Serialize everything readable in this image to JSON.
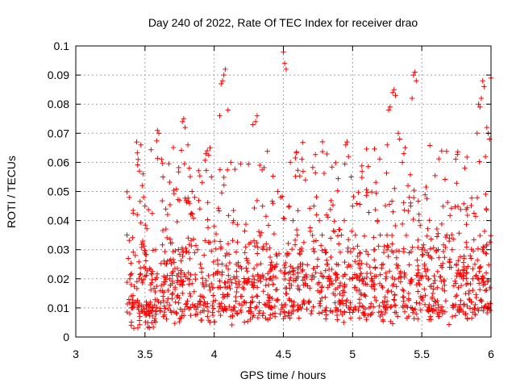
{
  "chart_data": {
    "type": "scatter",
    "title": "Day 240 of 2022, Rate Of TEC Index for receiver drao",
    "xlabel": "GPS time / hours",
    "ylabel": "ROTI / TECUs",
    "xlim": [
      3,
      6
    ],
    "ylim": [
      0,
      0.1
    ],
    "xticks": [
      3,
      3.5,
      4,
      4.5,
      5,
      5.5,
      6
    ],
    "xtick_labels": [
      "3",
      "3.5",
      "4",
      "4.5",
      "5",
      "5.5",
      "6"
    ],
    "yticks": [
      0,
      0.01,
      0.02,
      0.03,
      0.04,
      0.05,
      0.06,
      0.07,
      0.08,
      0.09,
      0.1
    ],
    "ytick_labels": [
      "0",
      "0.01",
      "0.02",
      "0.03",
      "0.04",
      "0.05",
      "0.06",
      "0.07",
      "0.08",
      "0.09",
      "0.1"
    ],
    "grid": true,
    "marker": "plus",
    "color": "#ff0000",
    "series": [
      {
        "points": [
          [
            3.37,
            0.035
          ],
          [
            3.38,
            0.027
          ],
          [
            3.39,
            0.02
          ],
          [
            3.4,
            0.018
          ],
          [
            3.39,
            0.008
          ],
          [
            3.4,
            0.004
          ],
          [
            3.41,
            0.01
          ],
          [
            3.42,
            0.003
          ],
          [
            3.43,
            0.028
          ],
          [
            3.44,
            0.067
          ],
          [
            3.45,
            0.061
          ],
          [
            3.46,
            0.057
          ],
          [
            3.47,
            0.066
          ],
          [
            3.48,
            0.052
          ],
          [
            3.49,
            0.048
          ],
          [
            3.5,
            0.045
          ],
          [
            3.51,
            0.012
          ],
          [
            3.52,
            0.005
          ],
          [
            3.53,
            0.008
          ],
          [
            3.55,
            0.009
          ],
          [
            3.57,
            0.011
          ],
          [
            3.59,
            0.071
          ],
          [
            3.6,
            0.07
          ],
          [
            3.62,
            0.061
          ],
          [
            3.63,
            0.055
          ],
          [
            3.65,
            0.044
          ],
          [
            3.68,
            0.02
          ],
          [
            3.7,
            0.015
          ],
          [
            3.72,
            0.012
          ],
          [
            3.73,
            0.008
          ],
          [
            3.75,
            0.047
          ],
          [
            3.77,
            0.074
          ],
          [
            3.78,
            0.075
          ],
          [
            3.79,
            0.072
          ],
          [
            3.81,
            0.066
          ],
          [
            3.82,
            0.058
          ],
          [
            3.84,
            0.05
          ],
          [
            3.86,
            0.048
          ],
          [
            3.88,
            0.03
          ],
          [
            3.9,
            0.025
          ],
          [
            3.92,
            0.018
          ],
          [
            3.94,
            0.063
          ],
          [
            3.95,
            0.064
          ],
          [
            3.97,
            0.065
          ],
          [
            3.98,
            0.055
          ],
          [
            4.0,
            0.038
          ],
          [
            4.02,
            0.022
          ],
          [
            4.04,
            0.076
          ],
          [
            4.05,
            0.087
          ],
          [
            4.06,
            0.088
          ],
          [
            4.07,
            0.09
          ],
          [
            4.08,
            0.092
          ],
          [
            4.1,
            0.078
          ],
          [
            4.12,
            0.06
          ],
          [
            4.14,
            0.04
          ],
          [
            4.16,
            0.025
          ],
          [
            4.18,
            0.018
          ],
          [
            4.2,
            0.014
          ],
          [
            4.22,
            0.012
          ],
          [
            4.25,
            0.009
          ],
          [
            4.28,
            0.073
          ],
          [
            4.3,
            0.074
          ],
          [
            4.31,
            0.076
          ],
          [
            4.33,
            0.059
          ],
          [
            4.35,
            0.045
          ],
          [
            4.38,
            0.03
          ],
          [
            4.4,
            0.02
          ],
          [
            4.42,
            0.01
          ],
          [
            4.44,
            0.007
          ],
          [
            4.46,
            0.05
          ],
          [
            4.48,
            0.048
          ],
          [
            4.5,
            0.098
          ],
          [
            4.51,
            0.094
          ],
          [
            4.52,
            0.092
          ],
          [
            4.55,
            0.06
          ],
          [
            4.57,
            0.04
          ],
          [
            4.6,
            0.035
          ],
          [
            4.62,
            0.03
          ],
          [
            4.64,
            0.025
          ],
          [
            4.66,
            0.018
          ],
          [
            4.68,
            0.012
          ],
          [
            4.7,
            0.008
          ],
          [
            4.72,
            0.045
          ],
          [
            4.74,
            0.042
          ],
          [
            4.76,
            0.04
          ],
          [
            4.78,
            0.035
          ],
          [
            4.8,
            0.03
          ],
          [
            4.82,
            0.025
          ],
          [
            4.84,
            0.02
          ],
          [
            4.86,
            0.015
          ],
          [
            4.88,
            0.01
          ],
          [
            4.9,
            0.032
          ],
          [
            4.92,
            0.035
          ],
          [
            4.94,
            0.04
          ],
          [
            4.95,
            0.066
          ],
          [
            4.96,
            0.067
          ],
          [
            4.97,
            0.062
          ],
          [
            4.99,
            0.055
          ],
          [
            5.0,
            0.045
          ],
          [
            5.02,
            0.035
          ],
          [
            5.04,
            0.025
          ],
          [
            5.06,
            0.015
          ],
          [
            5.08,
            0.008
          ],
          [
            5.1,
            0.006
          ],
          [
            5.12,
            0.01
          ],
          [
            5.14,
            0.02
          ],
          [
            5.16,
            0.03
          ],
          [
            5.18,
            0.04
          ],
          [
            5.2,
            0.035
          ],
          [
            5.22,
            0.025
          ],
          [
            5.24,
            0.02
          ],
          [
            5.25,
            0.066
          ],
          [
            5.26,
            0.078
          ],
          [
            5.27,
            0.079
          ],
          [
            5.29,
            0.084
          ],
          [
            5.3,
            0.085
          ],
          [
            5.31,
            0.083
          ],
          [
            5.33,
            0.07
          ],
          [
            5.34,
            0.068
          ],
          [
            5.36,
            0.06
          ],
          [
            5.37,
            0.063
          ],
          [
            5.38,
            0.065
          ],
          [
            5.4,
            0.052
          ],
          [
            5.41,
            0.048
          ],
          [
            5.42,
            0.045
          ],
          [
            5.43,
            0.082
          ],
          [
            5.44,
            0.09
          ],
          [
            5.45,
            0.091
          ],
          [
            5.46,
            0.088
          ],
          [
            5.48,
            0.04
          ],
          [
            5.5,
            0.03
          ],
          [
            5.52,
            0.025
          ],
          [
            5.55,
            0.02
          ],
          [
            5.58,
            0.015
          ],
          [
            5.6,
            0.012
          ],
          [
            5.62,
            0.01
          ],
          [
            5.65,
            0.008
          ],
          [
            5.68,
            0.035
          ],
          [
            5.7,
            0.034
          ],
          [
            5.72,
            0.03
          ],
          [
            5.75,
            0.025
          ],
          [
            5.78,
            0.022
          ],
          [
            5.8,
            0.02
          ],
          [
            5.82,
            0.018
          ],
          [
            5.84,
            0.015
          ],
          [
            5.86,
            0.012
          ],
          [
            5.88,
            0.01
          ],
          [
            5.9,
            0.07
          ],
          [
            5.91,
            0.08
          ],
          [
            5.92,
            0.079
          ],
          [
            5.93,
            0.082
          ],
          [
            5.94,
            0.088
          ],
          [
            5.95,
            0.086
          ],
          [
            5.96,
            0.062
          ],
          [
            5.97,
            0.072
          ],
          [
            5.98,
            0.07
          ],
          [
            5.99,
            0.068
          ],
          [
            6.0,
            0.089
          ]
        ]
      }
    ],
    "generated_density": {
      "description_free": true,
      "count": 1400,
      "x_range": [
        3.37,
        6.0
      ],
      "bands": [
        {
          "y_center": 0.01,
          "y_spread": 0.005,
          "weight": 0.34
        },
        {
          "y_center": 0.02,
          "y_spread": 0.006,
          "weight": 0.33
        },
        {
          "y_center": 0.03,
          "y_spread": 0.008,
          "weight": 0.18
        },
        {
          "y_center": 0.045,
          "y_spread": 0.01,
          "weight": 0.1
        },
        {
          "y_center": 0.06,
          "y_spread": 0.008,
          "weight": 0.05
        }
      ]
    }
  }
}
